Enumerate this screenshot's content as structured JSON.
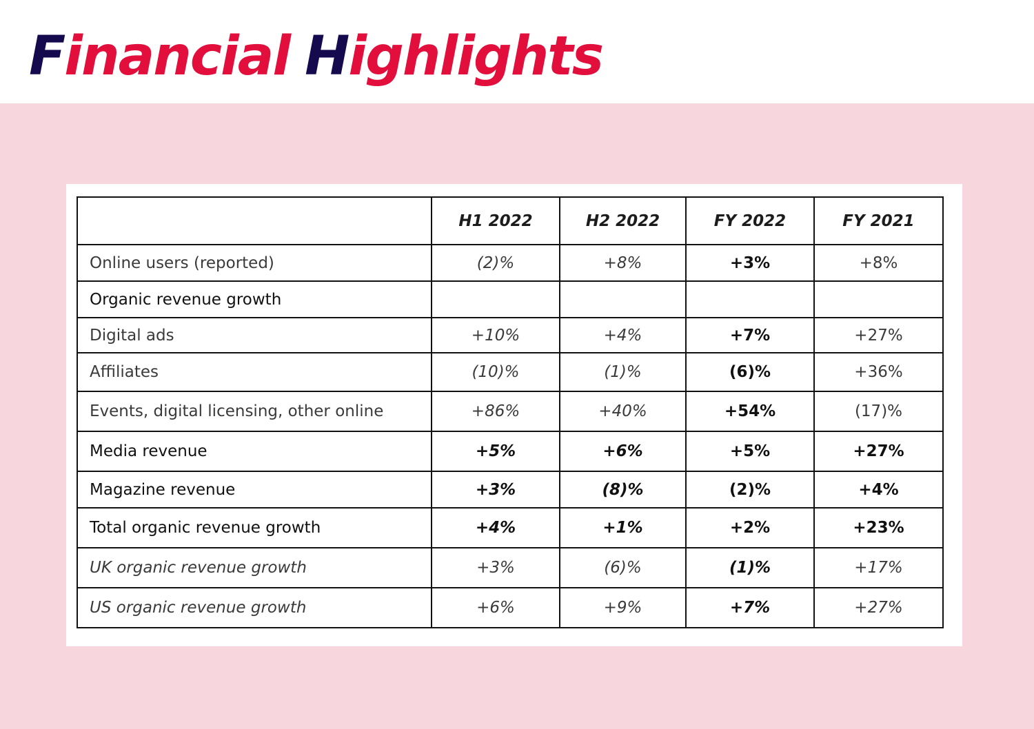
{
  "title": {
    "word1_initial": "F",
    "word1_rest": "inancial",
    "word2_initial": "H",
    "word2_rest": "ighlights"
  },
  "table": {
    "header": [
      "",
      "H1 2022",
      "H2 2022",
      "FY 2022",
      "FY 2021"
    ],
    "rows": [
      {
        "label": "Online users (reported)",
        "values": [
          "(2)%",
          "+8%",
          "+3%",
          "+8%"
        ]
      },
      {
        "label": "Organic revenue growth",
        "values": [
          "",
          "",
          "",
          ""
        ]
      },
      {
        "label": "Digital ads",
        "values": [
          "+10%",
          "+4%",
          "+7%",
          "+27%"
        ]
      },
      {
        "label": "Affiliates",
        "values": [
          "(10)%",
          "(1)%",
          "(6)%",
          "+36%"
        ]
      },
      {
        "label": "Events, digital licensing, other online",
        "values": [
          "+86%",
          "+40%",
          "+54%",
          "(17)%"
        ]
      },
      {
        "label": "Media revenue",
        "values": [
          "+5%",
          "+6%",
          "+5%",
          "+27%"
        ]
      },
      {
        "label": "Magazine revenue",
        "values": [
          "+3%",
          "(8)%",
          "(2)%",
          "+4%"
        ]
      },
      {
        "label": "Total organic revenue growth",
        "values": [
          "+4%",
          "+1%",
          "+2%",
          "+23%"
        ]
      },
      {
        "label": "UK organic revenue growth",
        "values": [
          "+3%",
          "(6)%",
          "(1)%",
          "+17%"
        ]
      },
      {
        "label": "US organic revenue growth",
        "values": [
          "+6%",
          "+9%",
          "+7%",
          "+27%"
        ]
      }
    ]
  }
}
